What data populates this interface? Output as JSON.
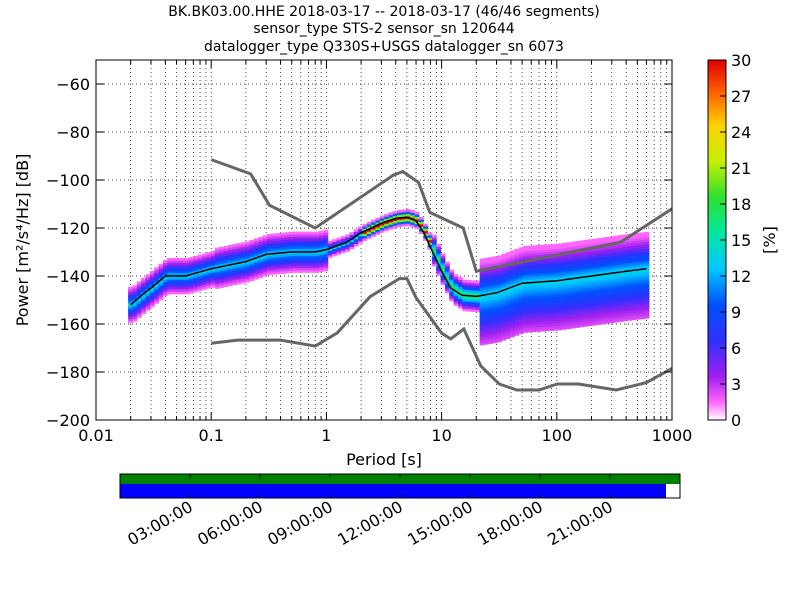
{
  "title": {
    "line1": "BK.BK03.00.HHE   2018-03-17 -- 2018-03-17  (46/46 segments)",
    "line2": "sensor_type STS-2 sensor_sn 120644",
    "line3": "datalogger_type Q330S+USGS datalogger_sn 6073"
  },
  "colors": {
    "nlnm_nhnm": "#666666",
    "mode_line": "#000000",
    "coverage_green": "#008000",
    "coverage_blue": "#0000ff"
  },
  "chart_data": {
    "type": "heatmap",
    "xlabel": "Period [s]",
    "ylabel": "Power [m²/s⁴/Hz] [dB]",
    "x_scale": "log",
    "xlim": [
      0.01,
      1000
    ],
    "ylim": [
      -200,
      -50
    ],
    "x_ticks": [
      0.01,
      0.1,
      1,
      10,
      100,
      1000
    ],
    "x_tick_labels": [
      "0.01",
      "0.1",
      "1",
      "10",
      "100",
      "1000"
    ],
    "y_ticks": [
      -60,
      -80,
      -100,
      -120,
      -140,
      -160,
      -180,
      -200
    ],
    "y_tick_labels": [
      "−60",
      "−80",
      "−100",
      "−120",
      "−140",
      "−160",
      "−180",
      "−200"
    ],
    "grid": true,
    "colorbar": {
      "label": "[%]",
      "range": [
        0,
        30
      ],
      "ticks": [
        0,
        3,
        6,
        9,
        12,
        15,
        18,
        21,
        24,
        27,
        30
      ]
    },
    "nhnm": {
      "period": [
        0.1,
        0.22,
        0.32,
        0.8,
        3.8,
        4.6,
        6.3,
        7.9,
        15.4,
        20,
        354.8,
        1000
      ],
      "power": [
        -91.5,
        -97.4,
        -110.5,
        -120,
        -98,
        -96.5,
        -101,
        -113.5,
        -120,
        -138,
        -126,
        -112
      ]
    },
    "nlnm": {
      "period": [
        0.1,
        0.17,
        0.4,
        0.8,
        1.24,
        2.4,
        4.3,
        5,
        6,
        10,
        12,
        15.6,
        21.9,
        31.6,
        45,
        70,
        101,
        154,
        328,
        600,
        1000
      ],
      "power": [
        -168,
        -166.7,
        -166.7,
        -169.2,
        -163.7,
        -148.6,
        -141.1,
        -141.1,
        -149,
        -163.8,
        -166.2,
        -162.1,
        -177.5,
        -185,
        -187.5,
        -187.5,
        -185,
        -185,
        -187.5,
        -184.4,
        -178.5
      ]
    },
    "mode": {
      "period": [
        0.02,
        0.025,
        0.03,
        0.04,
        0.06,
        0.1,
        0.2,
        0.3,
        0.5,
        0.8,
        1.0,
        1.5,
        2.0,
        3.0,
        4.0,
        5.0,
        6.0,
        7.0,
        8.0,
        10,
        12,
        15,
        20,
        30,
        50,
        100,
        200,
        400,
        600
      ],
      "power": [
        -152,
        -148,
        -145,
        -140,
        -140,
        -137,
        -134,
        -131,
        -130,
        -130,
        -129,
        -126,
        -122,
        -118,
        -116,
        -115.5,
        -117,
        -122,
        -128,
        -138,
        -145,
        -148,
        -148.5,
        -147,
        -143,
        -142,
        -140,
        -138,
        -137
      ]
    },
    "time_axis": {
      "tick_labels": [
        "03:00:00",
        "06:00:00",
        "09:00:00",
        "12:00:00",
        "15:00:00",
        "18:00:00",
        "21:00:00"
      ],
      "tick_hours": [
        3,
        6,
        9,
        12,
        15,
        18,
        21
      ],
      "range_hours": [
        0,
        24
      ],
      "data_coverage_end_hour": 23.4
    }
  }
}
